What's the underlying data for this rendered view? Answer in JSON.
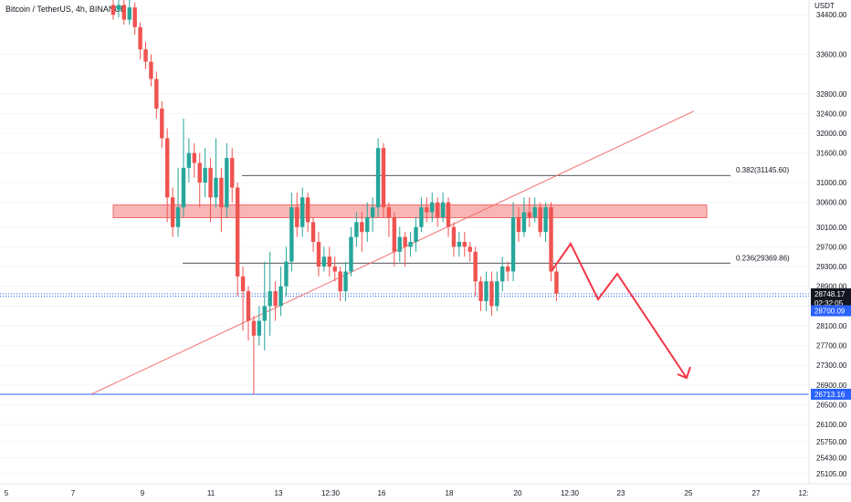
{
  "header": {
    "symbol_title": "Bitcoin / TetherUS, 4h, BINANCE"
  },
  "price_scale": {
    "currency": "USDT"
  },
  "colors": {
    "up": "#26a69a",
    "down": "#ef5350",
    "trendline": "#f36f6f",
    "level_line": "#2962ff",
    "zone_fill": "#f7a9a9",
    "projection": "#f23645",
    "fib_line": "#131722"
  },
  "chart_data": {
    "type": "candlestick",
    "title": "Bitcoin / TetherUS, 4h, BINANCE",
    "ylim": [
      24900,
      34700
    ],
    "y_ticks": [
      34400,
      33600,
      32800,
      32400,
      32000,
      31600,
      31000,
      30600,
      30100,
      29700,
      29300,
      28900,
      28500,
      28100,
      27700,
      27300,
      26900,
      26500,
      26100,
      25750,
      25430,
      25105
    ],
    "x_tick_labels": [
      "5",
      "7",
      "9",
      "11",
      "13",
      "12:30",
      "16",
      "18",
      "20",
      "12:30",
      "23",
      "25",
      "27",
      "12:"
    ],
    "candles": [
      {
        "o": 34600,
        "c": 34400,
        "h": 34700,
        "l": 34300
      },
      {
        "o": 34500,
        "c": 34600,
        "h": 34700,
        "l": 34350
      },
      {
        "o": 34600,
        "c": 34300,
        "h": 34700,
        "l": 34200
      },
      {
        "o": 34300,
        "c": 34550,
        "h": 34700,
        "l": 34200
      },
      {
        "o": 34550,
        "c": 34150,
        "h": 34650,
        "l": 34000
      },
      {
        "o": 34150,
        "c": 33700,
        "h": 34250,
        "l": 33500
      },
      {
        "o": 33700,
        "c": 33450,
        "h": 33850,
        "l": 33300
      },
      {
        "o": 33450,
        "c": 33100,
        "h": 33600,
        "l": 32950
      },
      {
        "o": 33100,
        "c": 32500,
        "h": 33250,
        "l": 32300
      },
      {
        "o": 32500,
        "c": 31900,
        "h": 32650,
        "l": 31700
      },
      {
        "o": 31900,
        "c": 30700,
        "h": 32100,
        "l": 30200
      },
      {
        "o": 30700,
        "c": 30100,
        "h": 30900,
        "l": 29900
      },
      {
        "o": 30100,
        "c": 30500,
        "h": 31300,
        "l": 29900
      },
      {
        "o": 30500,
        "c": 31300,
        "h": 32300,
        "l": 30300
      },
      {
        "o": 31300,
        "c": 31600,
        "h": 31900,
        "l": 31000
      },
      {
        "o": 31600,
        "c": 31400,
        "h": 31800,
        "l": 31100
      },
      {
        "o": 31400,
        "c": 31000,
        "h": 31600,
        "l": 30500
      },
      {
        "o": 31000,
        "c": 31300,
        "h": 31700,
        "l": 30700
      },
      {
        "o": 31300,
        "c": 30700,
        "h": 31500,
        "l": 30200
      },
      {
        "o": 30700,
        "c": 31100,
        "h": 31900,
        "l": 30500
      },
      {
        "o": 31100,
        "c": 30500,
        "h": 31300,
        "l": 30000
      },
      {
        "o": 30500,
        "c": 31500,
        "h": 31800,
        "l": 30300
      },
      {
        "o": 31500,
        "c": 30900,
        "h": 31700,
        "l": 30600
      },
      {
        "o": 30900,
        "c": 29100,
        "h": 31000,
        "l": 28700
      },
      {
        "o": 29100,
        "c": 28800,
        "h": 29300,
        "l": 28000
      },
      {
        "o": 28800,
        "c": 28200,
        "h": 28900,
        "l": 27800
      },
      {
        "o": 28200,
        "c": 27900,
        "h": 28300,
        "l": 26700
      },
      {
        "o": 27900,
        "c": 28200,
        "h": 28500,
        "l": 27700
      },
      {
        "o": 28200,
        "c": 28500,
        "h": 29400,
        "l": 27600
      },
      {
        "o": 28500,
        "c": 28800,
        "h": 29600,
        "l": 27900
      },
      {
        "o": 28800,
        "c": 28500,
        "h": 29000,
        "l": 28200
      },
      {
        "o": 28500,
        "c": 28900,
        "h": 29300,
        "l": 28300
      },
      {
        "o": 28900,
        "c": 29400,
        "h": 29700,
        "l": 28700
      },
      {
        "o": 29400,
        "c": 30500,
        "h": 30800,
        "l": 29200
      },
      {
        "o": 30500,
        "c": 30100,
        "h": 30800,
        "l": 29900
      },
      {
        "o": 30100,
        "c": 30700,
        "h": 30900,
        "l": 29900
      },
      {
        "o": 30700,
        "c": 30200,
        "h": 30800,
        "l": 30000
      },
      {
        "o": 30200,
        "c": 29800,
        "h": 30300,
        "l": 29600
      },
      {
        "o": 29800,
        "c": 29300,
        "h": 30000,
        "l": 29100
      },
      {
        "o": 29300,
        "c": 29500,
        "h": 29700,
        "l": 29200
      },
      {
        "o": 29500,
        "c": 29300,
        "h": 29700,
        "l": 29100
      },
      {
        "o": 29300,
        "c": 29200,
        "h": 29500,
        "l": 29000
      },
      {
        "o": 29200,
        "c": 28800,
        "h": 29300,
        "l": 28600
      },
      {
        "o": 28800,
        "c": 29200,
        "h": 29400,
        "l": 28600
      },
      {
        "o": 29200,
        "c": 29900,
        "h": 30100,
        "l": 29100
      },
      {
        "o": 29900,
        "c": 30200,
        "h": 30400,
        "l": 29700
      },
      {
        "o": 30200,
        "c": 30000,
        "h": 30400,
        "l": 29600
      },
      {
        "o": 30000,
        "c": 30300,
        "h": 30600,
        "l": 29800
      },
      {
        "o": 30300,
        "c": 30500,
        "h": 30700,
        "l": 30000
      },
      {
        "o": 30500,
        "c": 31700,
        "h": 31900,
        "l": 30300
      },
      {
        "o": 31700,
        "c": 30500,
        "h": 31800,
        "l": 30300
      },
      {
        "o": 30500,
        "c": 30300,
        "h": 30600,
        "l": 29900
      },
      {
        "o": 30300,
        "c": 29600,
        "h": 30400,
        "l": 29300
      },
      {
        "o": 29600,
        "c": 29900,
        "h": 30100,
        "l": 29400
      },
      {
        "o": 29900,
        "c": 29700,
        "h": 30000,
        "l": 29300
      },
      {
        "o": 29700,
        "c": 29800,
        "h": 30000,
        "l": 29500
      },
      {
        "o": 29800,
        "c": 30100,
        "h": 30300,
        "l": 29600
      },
      {
        "o": 30100,
        "c": 30500,
        "h": 30700,
        "l": 30000
      },
      {
        "o": 30500,
        "c": 30400,
        "h": 30700,
        "l": 30200
      },
      {
        "o": 30400,
        "c": 30600,
        "h": 30800,
        "l": 30200
      },
      {
        "o": 30600,
        "c": 30300,
        "h": 30700,
        "l": 30100
      },
      {
        "o": 30300,
        "c": 30600,
        "h": 30800,
        "l": 30200
      },
      {
        "o": 30600,
        "c": 30100,
        "h": 30700,
        "l": 29900
      },
      {
        "o": 30100,
        "c": 29700,
        "h": 30200,
        "l": 29500
      },
      {
        "o": 29700,
        "c": 29800,
        "h": 30000,
        "l": 29500
      },
      {
        "o": 29800,
        "c": 29700,
        "h": 30000,
        "l": 29500
      },
      {
        "o": 29700,
        "c": 29600,
        "h": 29800,
        "l": 29400
      },
      {
        "o": 29600,
        "c": 29000,
        "h": 29700,
        "l": 28700
      },
      {
        "o": 29000,
        "c": 28600,
        "h": 29100,
        "l": 28400
      },
      {
        "o": 28600,
        "c": 29000,
        "h": 29200,
        "l": 28400
      },
      {
        "o": 29000,
        "c": 28500,
        "h": 29200,
        "l": 28300
      },
      {
        "o": 28500,
        "c": 29000,
        "h": 29200,
        "l": 28400
      },
      {
        "o": 29000,
        "c": 29300,
        "h": 29500,
        "l": 28800
      },
      {
        "o": 29300,
        "c": 29200,
        "h": 29400,
        "l": 29000
      },
      {
        "o": 29200,
        "c": 30300,
        "h": 30600,
        "l": 29000
      },
      {
        "o": 30300,
        "c": 30000,
        "h": 30500,
        "l": 29800
      },
      {
        "o": 30000,
        "c": 30400,
        "h": 30700,
        "l": 29900
      },
      {
        "o": 30400,
        "c": 30300,
        "h": 30700,
        "l": 30100
      },
      {
        "o": 30300,
        "c": 30500,
        "h": 30700,
        "l": 30200
      },
      {
        "o": 30500,
        "c": 30000,
        "h": 30600,
        "l": 29900
      },
      {
        "o": 30000,
        "c": 30500,
        "h": 30600,
        "l": 29800
      },
      {
        "o": 30500,
        "c": 29200,
        "h": 30600,
        "l": 29000
      },
      {
        "o": 29200,
        "c": 28750,
        "h": 29300,
        "l": 28600
      }
    ],
    "annotations": {
      "fib_levels": [
        {
          "label": "0.382(31145.60)",
          "price": 31145.6
        },
        {
          "label": "0.236(29369.86)",
          "price": 29369.86
        }
      ],
      "resistance_zone": {
        "top": 30550,
        "bottom": 30290
      },
      "support_level": {
        "label": "26713.16",
        "price": 26713.16
      },
      "current_price": {
        "label": "28748.17",
        "price": 28748.17,
        "countdown": "02:32:05"
      },
      "level_2": {
        "label": "28700.09",
        "price": 28700.09
      },
      "trendline": [
        {
          "bar": -5,
          "price": 26713
        },
        {
          "bar": 104,
          "price": 32450
        }
      ],
      "projection_path": [
        {
          "bar": 83,
          "price": 28750
        },
        {
          "bar": 86,
          "price": 29350
        },
        {
          "bar": 90,
          "price": 28000
        },
        {
          "bar": 93,
          "price": 28850
        },
        {
          "bar": 102,
          "price": 26713
        }
      ]
    }
  }
}
